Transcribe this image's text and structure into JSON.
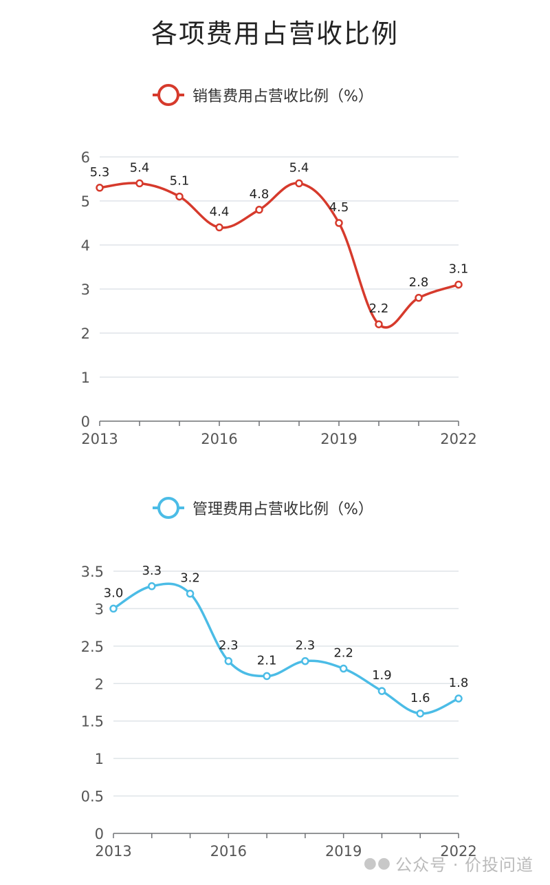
{
  "page_title": "各项费用占营收比例",
  "watermark": "公众号 · 价投问道",
  "chart_data": [
    {
      "type": "line",
      "smooth": true,
      "legend": "销售费用占营收比例（%）",
      "legend_placement": "top-center",
      "color": "#d63a2c",
      "x": [
        2013,
        2014,
        2015,
        2016,
        2017,
        2018,
        2019,
        2020,
        2021,
        2022
      ],
      "x_tick_labels": [
        "2013",
        "2016",
        "2019",
        "2022"
      ],
      "values": [
        5.3,
        5.4,
        5.1,
        4.4,
        4.8,
        5.4,
        4.5,
        2.2,
        2.8,
        3.1
      ],
      "data_labels": [
        "5.3",
        "5.4",
        "5.1",
        "4.4",
        "4.8",
        "5.4",
        "4.5",
        "2.2",
        "2.8",
        "3.1"
      ],
      "ylim": [
        0,
        6
      ],
      "y_ticks": [
        0,
        1,
        2,
        3,
        4,
        5,
        6
      ],
      "y_tick_labels": [
        "0",
        "1",
        "2",
        "3",
        "4",
        "5",
        "6"
      ],
      "grid": true
    },
    {
      "type": "line",
      "smooth": true,
      "legend": "管理费用占营收比例（%）",
      "legend_placement": "top-center",
      "color": "#4bbce6",
      "x": [
        2013,
        2014,
        2015,
        2016,
        2017,
        2018,
        2019,
        2020,
        2021,
        2022
      ],
      "x_tick_labels": [
        "2013",
        "2016",
        "2019",
        "2022"
      ],
      "values": [
        3.0,
        3.3,
        3.2,
        2.3,
        2.1,
        2.3,
        2.2,
        1.9,
        1.6,
        1.8
      ],
      "data_labels": [
        "3.0",
        "3.3",
        "3.2",
        "2.3",
        "2.1",
        "2.3",
        "2.2",
        "1.9",
        "1.6",
        "1.8"
      ],
      "ylim": [
        0,
        3.5
      ],
      "y_ticks": [
        0,
        0.5,
        1,
        1.5,
        2,
        2.5,
        3,
        3.5
      ],
      "y_tick_labels": [
        "0",
        "0.5",
        "1",
        "1.5",
        "2",
        "2.5",
        "3",
        "3.5"
      ],
      "grid": true
    }
  ]
}
